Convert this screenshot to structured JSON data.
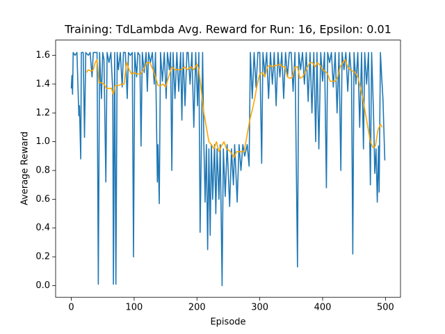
{
  "chart_data": {
    "type": "line",
    "title": "Training: TdLambda Avg. Reward for Run: 16, Epsilon: 0.01",
    "xlabel": "Episode",
    "ylabel": "Average Reward",
    "xlim": [
      -24.95,
      523.95
    ],
    "ylim": [
      -0.081,
      1.706
    ],
    "xticks": [
      0,
      100,
      200,
      300,
      400,
      500
    ],
    "yticks": [
      {
        "value": 0,
        "label": "0.0"
      },
      0.2,
      0.4,
      0.6,
      0.8,
      {
        "value": 1,
        "label": "1.0"
      },
      1.2,
      1.4,
      1.6
    ],
    "grid": false,
    "series": [
      {
        "color": "#1f77b4",
        "x": [
          0,
          1,
          2,
          3,
          6,
          9,
          12,
          13,
          15,
          16,
          19,
          21,
          23,
          27,
          30,
          33,
          35,
          38,
          41,
          43,
          45,
          48,
          50,
          52,
          55,
          57,
          60,
          63,
          66,
          67,
          69,
          71,
          73,
          75,
          78,
          81,
          83,
          86,
          89,
          91,
          94,
          97,
          99,
          101,
          104,
          106,
          109,
          111,
          113,
          116,
          119,
          121,
          123,
          126,
          129,
          132,
          134,
          137,
          138,
          140,
          142,
          145,
          148,
          151,
          153,
          156,
          158,
          160,
          162,
          165,
          168,
          171,
          174,
          176,
          178,
          181,
          184,
          186,
          189,
          192,
          195,
          198,
          201,
          203,
          205,
          207,
          209,
          211,
          213,
          215,
          217,
          219,
          221,
          223,
          225,
          228,
          230,
          232,
          235,
          237,
          240,
          242,
          245,
          248,
          252,
          255,
          258,
          260,
          264,
          267,
          270,
          273,
          276,
          280,
          283,
          285,
          288,
          291,
          294,
          297,
          300,
          303,
          305,
          308,
          311,
          314,
          317,
          320,
          323,
          326,
          329,
          332,
          335,
          338,
          341,
          344,
          347,
          350,
          353,
          356,
          360,
          362,
          365,
          368,
          371,
          374,
          377,
          380,
          383,
          386,
          389,
          391,
          394,
          397,
          400,
          403,
          406,
          408,
          411,
          414,
          417,
          420,
          423,
          426,
          429,
          431,
          434,
          437,
          440,
          443,
          446,
          448,
          450,
          453,
          456,
          459,
          462,
          465,
          467,
          470,
          473,
          476,
          478,
          481,
          483,
          485,
          487,
          489,
          490,
          492,
          494,
          496,
          499
        ],
        "values": [
          1.37,
          1.46,
          1.33,
          1.62,
          1.6,
          1.62,
          1.18,
          1.25,
          0.88,
          1.62,
          1.62,
          1.03,
          1.62,
          1.6,
          1.62,
          1.45,
          1.62,
          1.62,
          1.62,
          0.01,
          1.62,
          1.3,
          1.62,
          1.57,
          0.72,
          1.62,
          1.55,
          1.62,
          1.35,
          0.01,
          1.62,
          0.01,
          1.62,
          1.5,
          1.62,
          1.38,
          1.62,
          1.62,
          1.3,
          1.62,
          1.6,
          1.62,
          0.2,
          1.62,
          1.45,
          1.62,
          1.6,
          0.97,
          1.62,
          1.48,
          1.62,
          1.35,
          1.62,
          1.55,
          1.62,
          1.4,
          1.62,
          0.72,
          0.98,
          0.57,
          1.62,
          1.42,
          1.62,
          1.3,
          1.62,
          1.5,
          1.62,
          0.8,
          1.62,
          1.3,
          1.62,
          1.35,
          1.62,
          1.15,
          1.62,
          1.25,
          1.62,
          1.62,
          1.4,
          1.62,
          1.1,
          1.62,
          1.25,
          1.62,
          0.37,
          0.98,
          1.62,
          0.98,
          0.58,
          0.98,
          0.25,
          0.95,
          0.35,
          0.98,
          0.6,
          0.98,
          0.5,
          0.95,
          0.6,
          0.98,
          0,
          0.95,
          0.62,
          0.98,
          0.55,
          0.95,
          0.7,
          0.98,
          0.58,
          0.98,
          0.8,
          0.98,
          0.9,
          0.98,
          0.83,
          1.62,
          1.3,
          1.62,
          1.38,
          1.62,
          1.62,
          0.85,
          1.62,
          1.47,
          1.62,
          1.3,
          1.62,
          1.4,
          1.62,
          1.25,
          1.62,
          1.45,
          1.62,
          1.3,
          1.62,
          1.45,
          1.62,
          1.62,
          1.35,
          1.62,
          0.13,
          1.62,
          1.5,
          1.62,
          1.4,
          1.62,
          1.28,
          1.62,
          1.2,
          1.62,
          1,
          1.62,
          0.95,
          1.62,
          1.42,
          1.62,
          0.68,
          1.62,
          1.55,
          1.62,
          1.38,
          1.62,
          1.2,
          1.62,
          0.8,
          1.62,
          1.5,
          1.62,
          1.35,
          1.62,
          1.45,
          0.22,
          1.62,
          1.4,
          1.62,
          1.1,
          1.62,
          0.95,
          1.62,
          1.4,
          1.62,
          0.7,
          1.62,
          1.2,
          0.78,
          0.95,
          0.58,
          0.97,
          0.65,
          1.62,
          1.45,
          1.3,
          0.87
        ]
      },
      {
        "color": "#ffa500",
        "x": [
          24,
          27,
          31,
          35,
          38,
          41,
          44,
          48,
          52,
          56,
          60,
          64,
          67,
          70,
          75,
          80,
          84,
          88,
          92,
          96,
          100,
          105,
          110,
          115,
          120,
          125,
          130,
          134,
          138,
          142,
          146,
          150,
          155,
          160,
          165,
          170,
          175,
          180,
          185,
          190,
          195,
          200,
          203,
          207,
          211,
          215,
          219,
          223,
          227,
          231,
          235,
          239,
          243,
          247,
          251,
          255,
          259,
          263,
          267,
          271,
          275,
          280,
          284,
          288,
          292,
          296,
          300,
          304,
          308,
          312,
          316,
          320,
          324,
          328,
          332,
          336,
          340,
          344,
          348,
          352,
          356,
          360,
          364,
          368,
          372,
          376,
          380,
          384,
          388,
          392,
          396,
          400,
          404,
          408,
          412,
          416,
          420,
          424,
          428,
          432,
          436,
          440,
          444,
          448,
          452,
          456,
          460,
          464,
          468,
          472,
          476,
          480,
          484,
          488,
          492,
          495
        ],
        "values": [
          1.48,
          1.5,
          1.49,
          1.5,
          1.55,
          1.57,
          1.41,
          1.41,
          1.4,
          1.37,
          1.37,
          1.37,
          1.33,
          1.39,
          1.39,
          1.4,
          1.4,
          1.55,
          1.5,
          1.47,
          1.48,
          1.47,
          1.47,
          1.5,
          1.55,
          1.55,
          1.5,
          1.45,
          1.39,
          1.39,
          1.4,
          1.38,
          1.45,
          1.52,
          1.5,
          1.5,
          1.5,
          1.52,
          1.5,
          1.52,
          1.5,
          1.54,
          1.5,
          1.35,
          1.2,
          1.1,
          1,
          0.98,
          0.95,
          1,
          0.93,
          0.97,
          1,
          0.95,
          0.94,
          0.92,
          0.89,
          0.93,
          0.93,
          0.93,
          0.93,
          1.05,
          1.15,
          1.22,
          1.3,
          1.4,
          1.47,
          1.48,
          1.45,
          1.52,
          1.53,
          1.52,
          1.53,
          1.53,
          1.54,
          1.52,
          1.52,
          1.45,
          1.44,
          1.45,
          1.52,
          1.52,
          1.44,
          1.45,
          1.48,
          1.52,
          1.55,
          1.55,
          1.52,
          1.55,
          1.53,
          1.5,
          1.49,
          1.47,
          1.42,
          1.42,
          1.42,
          1.45,
          1.52,
          1.55,
          1.57,
          1.52,
          1.5,
          1.49,
          1.48,
          1.45,
          1.38,
          1.3,
          1.2,
          1.1,
          1,
          0.96,
          0.97,
          1.08,
          1.12,
          1.1
        ]
      }
    ]
  }
}
